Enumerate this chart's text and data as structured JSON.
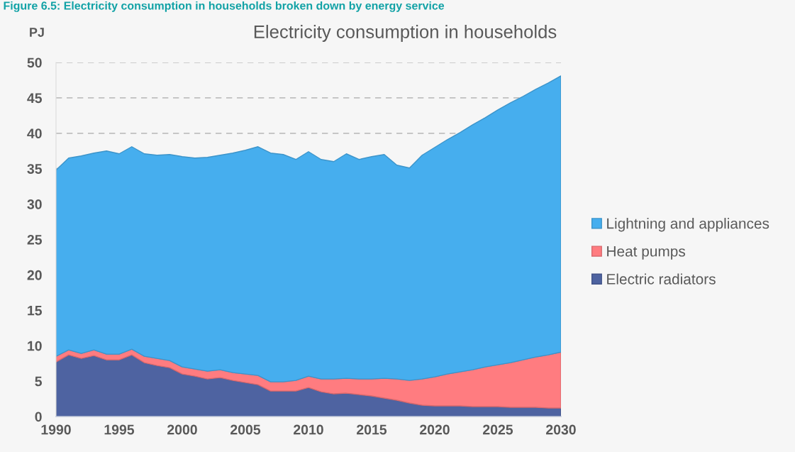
{
  "chart_data": {
    "type": "area",
    "stacked": true,
    "title": "Electricity consumption in households",
    "ylabel": "PJ",
    "annotations": [
      "Figure 6.5: Electricity consumption in households broken down by energy service"
    ],
    "x": [
      1990,
      1991,
      1992,
      1993,
      1994,
      1995,
      1996,
      1997,
      1998,
      1999,
      2000,
      2001,
      2002,
      2003,
      2004,
      2005,
      2006,
      2007,
      2008,
      2009,
      2010,
      2011,
      2012,
      2013,
      2014,
      2015,
      2016,
      2017,
      2018,
      2019,
      2020,
      2021,
      2022,
      2023,
      2024,
      2025,
      2026,
      2027,
      2028,
      2029,
      2030
    ],
    "series": [
      {
        "name": "Electric radiators",
        "color": "#4e63a1",
        "values": [
          7.7,
          8.7,
          8.2,
          8.6,
          8.0,
          8.0,
          8.7,
          7.6,
          7.2,
          6.9,
          6.0,
          5.7,
          5.3,
          5.5,
          5.1,
          4.8,
          4.5,
          3.6,
          3.6,
          3.6,
          4.1,
          3.5,
          3.2,
          3.3,
          3.1,
          2.9,
          2.6,
          2.3,
          1.9,
          1.6,
          1.5,
          1.5,
          1.5,
          1.4,
          1.4,
          1.4,
          1.3,
          1.3,
          1.3,
          1.2,
          1.2
        ]
      },
      {
        "name": "Heat pumps",
        "color": "#ff7c80",
        "values": [
          0.8,
          0.7,
          0.7,
          0.8,
          0.8,
          0.8,
          0.8,
          0.9,
          1.0,
          1.0,
          1.0,
          1.0,
          1.1,
          1.1,
          1.1,
          1.2,
          1.3,
          1.3,
          1.3,
          1.5,
          1.6,
          1.8,
          2.1,
          2.1,
          2.2,
          2.4,
          2.8,
          3.0,
          3.2,
          3.7,
          4.1,
          4.5,
          4.8,
          5.2,
          5.6,
          5.9,
          6.3,
          6.7,
          7.1,
          7.5,
          7.9
        ]
      },
      {
        "name": "Lightning and appliances",
        "color": "#46aeee",
        "values": [
          26.3,
          27.1,
          27.9,
          27.8,
          28.7,
          28.3,
          28.6,
          28.6,
          28.7,
          29.1,
          29.7,
          29.8,
          30.2,
          30.3,
          31.0,
          31.6,
          32.3,
          32.3,
          32.1,
          31.2,
          31.7,
          31.0,
          30.7,
          31.7,
          31.0,
          31.4,
          31.6,
          30.2,
          30.0,
          31.6,
          32.4,
          33.1,
          33.8,
          34.6,
          35.2,
          36.0,
          36.7,
          37.2,
          37.8,
          38.4,
          39.0
        ]
      }
    ],
    "xlim": [
      1990,
      2030
    ],
    "xticks": [
      1990,
      1995,
      2000,
      2005,
      2010,
      2015,
      2020,
      2025,
      2030
    ],
    "ylim": [
      0,
      50
    ],
    "yticks": [
      0,
      5,
      10,
      15,
      20,
      25,
      30,
      35,
      40,
      45,
      50
    ],
    "grid": "y",
    "legend": "right"
  }
}
